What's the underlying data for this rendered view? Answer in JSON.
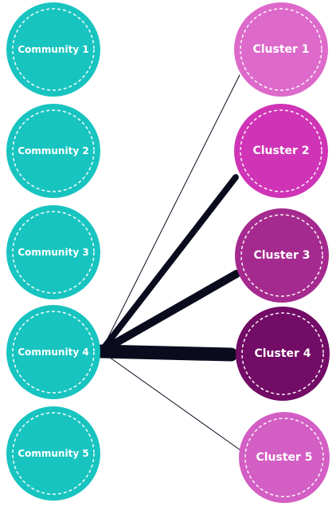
{
  "communities": [
    {
      "label": "Community 1"
    },
    {
      "label": "Community 2"
    },
    {
      "label": "Community 3"
    },
    {
      "label": "Community 4"
    },
    {
      "label": "Community 5"
    }
  ],
  "clusters": [
    {
      "label": "Cluster 1",
      "color": "#dd6acb"
    },
    {
      "label": "Cluster 2",
      "color": "#cf34b6"
    },
    {
      "label": "Cluster 3",
      "color": "#a52a8f"
    },
    {
      "label": "Cluster 4",
      "color": "#730c66"
    },
    {
      "label": "Cluster 5",
      "color": "#d35ec4"
    }
  ],
  "community_color": "#18c4c0",
  "edge_color": "#0b0b1e",
  "links": [
    {
      "from": 3,
      "to": 0,
      "strength": 1
    },
    {
      "from": 3,
      "to": 1,
      "strength": 4
    },
    {
      "from": 3,
      "to": 2,
      "strength": 5
    },
    {
      "from": 3,
      "to": 3,
      "strength": 8
    },
    {
      "from": 3,
      "to": 4,
      "strength": 1
    }
  ]
}
